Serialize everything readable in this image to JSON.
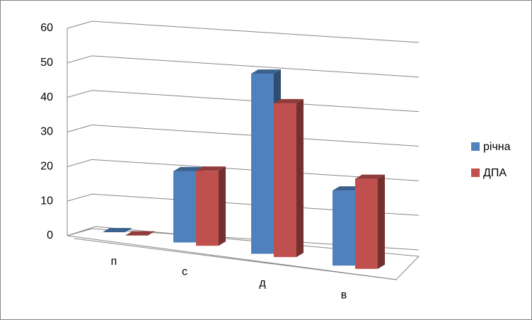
{
  "chart_data": {
    "type": "bar3d",
    "categories": [
      "п",
      "с",
      "д",
      "в"
    ],
    "series": [
      {
        "name": "річна",
        "color": "#4f81bd",
        "values": [
          0,
          19,
          48,
          20
        ]
      },
      {
        "name": "ДПА",
        "color": "#c0504d",
        "values": [
          0,
          20,
          41,
          24
        ]
      }
    ],
    "ylim": [
      0,
      60
    ],
    "yticks": [
      0,
      10,
      20,
      30,
      40,
      50,
      60
    ],
    "grid": true,
    "legend": "right"
  }
}
